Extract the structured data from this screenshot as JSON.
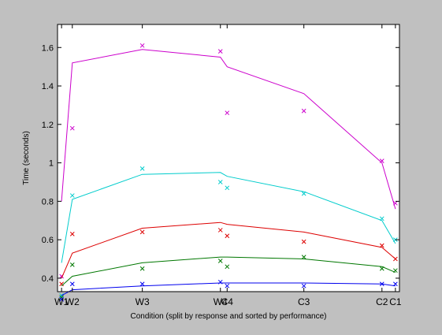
{
  "chart_data": {
    "type": "line",
    "title": "",
    "xlabel": "Condition (split by response and sorted by performance)",
    "ylabel": "Time (seconds)",
    "x_ticks": [
      {
        "label": "W1",
        "x": 1.0
      },
      {
        "label": "W2",
        "x": 1.4
      },
      {
        "label": "W3",
        "x": 4.0
      },
      {
        "label": "W4",
        "x": 6.9
      },
      {
        "label": "C4",
        "x": 7.15
      },
      {
        "label": "C3",
        "x": 10.0
      },
      {
        "label": "C2",
        "x": 12.9
      },
      {
        "label": "C1",
        "x": 13.4
      }
    ],
    "xlim": [
      0.85,
      13.55
    ],
    "ylim": [
      0.33,
      1.72
    ],
    "y_ticks": [
      0.4,
      0.6,
      0.8,
      1.0,
      1.2,
      1.4,
      1.6
    ],
    "y_tick_labels": [
      "0.4",
      "0.6",
      "0.8",
      "1",
      "1.2",
      "1.4",
      "1.6"
    ],
    "grid": false,
    "legend": "none",
    "series": [
      {
        "color": "#cc00cc",
        "line": [
          [
            1.0,
            0.8
          ],
          [
            1.4,
            1.52
          ],
          [
            4.0,
            1.59
          ],
          [
            6.9,
            1.55
          ],
          [
            7.15,
            1.5
          ],
          [
            10.0,
            1.36
          ],
          [
            12.9,
            1.0
          ],
          [
            13.4,
            0.76
          ]
        ],
        "markers": [
          [
            1.0,
            0.41
          ],
          [
            1.4,
            1.18
          ],
          [
            4.0,
            1.61
          ],
          [
            6.9,
            1.58
          ],
          [
            7.15,
            1.26
          ],
          [
            10.0,
            1.27
          ],
          [
            12.9,
            1.01
          ],
          [
            13.4,
            0.79
          ]
        ]
      },
      {
        "color": "#00cccc",
        "line": [
          [
            1.0,
            0.48
          ],
          [
            1.4,
            0.81
          ],
          [
            4.0,
            0.94
          ],
          [
            6.9,
            0.95
          ],
          [
            7.15,
            0.93
          ],
          [
            10.0,
            0.85
          ],
          [
            12.9,
            0.7
          ],
          [
            13.4,
            0.58
          ]
        ],
        "markers": [
          [
            1.0,
            0.31
          ],
          [
            1.4,
            0.83
          ],
          [
            4.0,
            0.97
          ],
          [
            6.9,
            0.9
          ],
          [
            7.15,
            0.87
          ],
          [
            10.0,
            0.84
          ],
          [
            12.9,
            0.71
          ],
          [
            13.4,
            0.6
          ]
        ]
      },
      {
        "color": "#dd0000",
        "line": [
          [
            1.0,
            0.4
          ],
          [
            1.4,
            0.53
          ],
          [
            4.0,
            0.66
          ],
          [
            6.9,
            0.69
          ],
          [
            7.15,
            0.68
          ],
          [
            10.0,
            0.64
          ],
          [
            12.9,
            0.56
          ],
          [
            13.4,
            0.5
          ]
        ],
        "markers": [
          [
            1.0,
            0.37
          ],
          [
            1.4,
            0.63
          ],
          [
            4.0,
            0.64
          ],
          [
            6.9,
            0.65
          ],
          [
            7.15,
            0.62
          ],
          [
            10.0,
            0.59
          ],
          [
            12.9,
            0.57
          ],
          [
            13.4,
            0.5
          ]
        ]
      },
      {
        "color": "#007700",
        "line": [
          [
            1.0,
            0.36
          ],
          [
            1.4,
            0.41
          ],
          [
            4.0,
            0.48
          ],
          [
            6.9,
            0.51
          ],
          [
            7.15,
            0.51
          ],
          [
            10.0,
            0.5
          ],
          [
            12.9,
            0.46
          ],
          [
            13.4,
            0.43
          ]
        ],
        "markers": [
          [
            1.0,
            0.3
          ],
          [
            1.4,
            0.47
          ],
          [
            4.0,
            0.45
          ],
          [
            6.9,
            0.49
          ],
          [
            7.15,
            0.46
          ],
          [
            10.0,
            0.51
          ],
          [
            12.9,
            0.45
          ],
          [
            13.4,
            0.44
          ]
        ]
      },
      {
        "color": "#0000ee",
        "line": [
          [
            1.0,
            0.31
          ],
          [
            1.4,
            0.34
          ],
          [
            4.0,
            0.36
          ],
          [
            6.9,
            0.375
          ],
          [
            7.15,
            0.375
          ],
          [
            10.0,
            0.375
          ],
          [
            12.9,
            0.37
          ],
          [
            13.4,
            0.36
          ]
        ],
        "markers": [
          [
            1.0,
            0.29
          ],
          [
            1.4,
            0.37
          ],
          [
            4.0,
            0.37
          ],
          [
            6.9,
            0.38
          ],
          [
            7.15,
            0.36
          ],
          [
            10.0,
            0.36
          ],
          [
            12.9,
            0.37
          ],
          [
            13.4,
            0.37
          ]
        ]
      }
    ]
  }
}
